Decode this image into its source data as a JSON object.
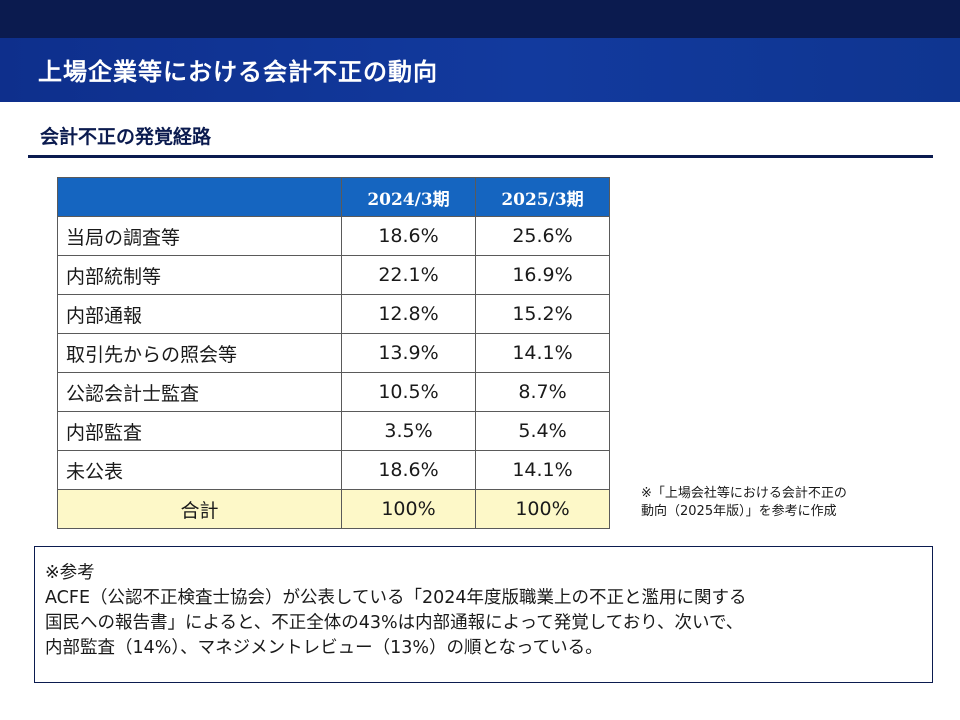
{
  "header": {
    "title": "上場企業等における会計不正の動向"
  },
  "section": {
    "heading": "会計不正の発覚経路"
  },
  "table": {
    "columns": [
      "",
      "2024/3期",
      "2025/3期"
    ],
    "rows": [
      {
        "label": "当局の調査等",
        "values": [
          "18.6%",
          "25.6%"
        ]
      },
      {
        "label": "内部統制等",
        "values": [
          "22.1%",
          "16.9%"
        ]
      },
      {
        "label": "内部通報",
        "values": [
          "12.8%",
          "15.2%"
        ]
      },
      {
        "label": "取引先からの照会等",
        "values": [
          "13.9%",
          "14.1%"
        ]
      },
      {
        "label": "公認会計士監査",
        "values": [
          "10.5%",
          "8.7%"
        ]
      },
      {
        "label": "内部監査",
        "values": [
          "3.5%",
          "5.4%"
        ]
      },
      {
        "label": "未公表",
        "values": [
          "18.6%",
          "14.1%"
        ]
      }
    ],
    "total": {
      "label": "合計",
      "values": [
        "100%",
        "100%"
      ]
    }
  },
  "note": {
    "lines": [
      "※「上場会社等における会計不正の",
      "動向（2025年版）」を参考に作成"
    ]
  },
  "reference": {
    "lines": [
      "※参考",
      "ACFE（公認不正検査士協会）が公表している「2024年度版職業上の不正と濫用に関する",
      "国民への報告書」によると、不正全体の43%は内部通報によって発覚しており、次いで、",
      "内部監査（14%）、マネジメントレビュー（13%）の順となっている。"
    ]
  },
  "colors": {
    "top_band": "#0b1b4f",
    "title_bar": "#123a9e",
    "table_header": "#1565c0",
    "total_row": "#fdf8c8"
  }
}
